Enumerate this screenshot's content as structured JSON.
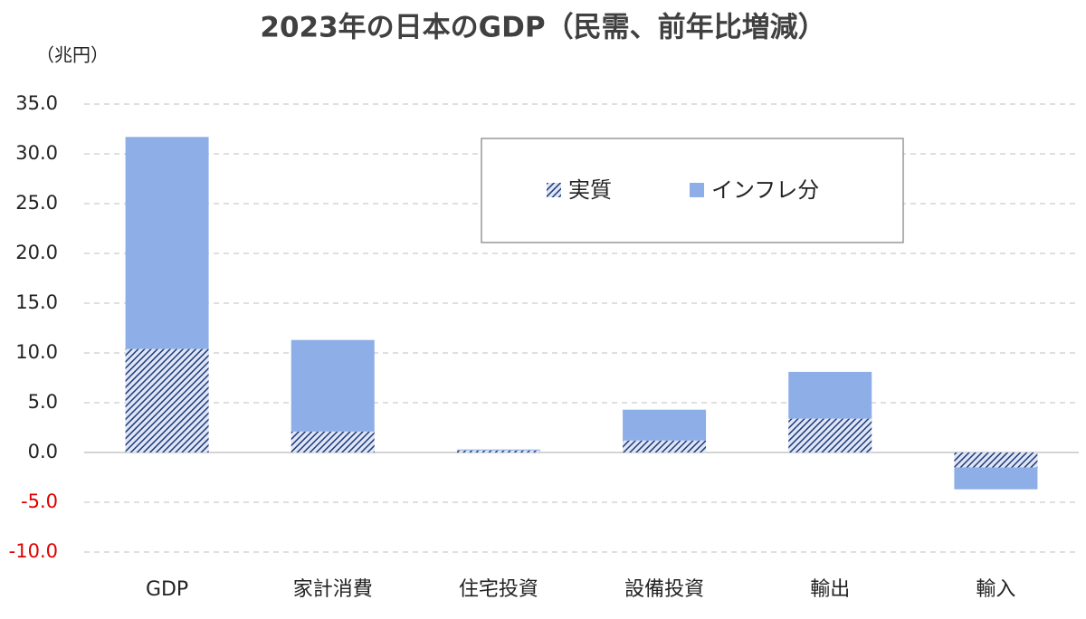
{
  "chart_data": {
    "type": "stacked_bar",
    "title": "2023年の日本のGDP（民需、前年比増減）",
    "y_label": "（兆円）",
    "categories": [
      "GDP",
      "家計消費",
      "住宅投資",
      "設備投資",
      "輸出",
      "輸入"
    ],
    "series": [
      {
        "name": "実質",
        "color": "#1f3a7a",
        "pattern": "hatch",
        "values": [
          10.4,
          2.1,
          0.2,
          1.2,
          3.4,
          -1.5
        ]
      },
      {
        "name": "インフレ分",
        "color": "#8eaee8",
        "values": [
          21.3,
          9.2,
          0.1,
          3.1,
          4.7,
          -2.2
        ]
      }
    ],
    "ylim": [
      -10,
      35
    ],
    "yticks": [
      {
        "value": -10,
        "label": "-10.0"
      },
      {
        "value": -5,
        "label": "-5.0"
      },
      {
        "value": 0,
        "label": "0.0"
      },
      {
        "value": 5,
        "label": "5.0"
      },
      {
        "value": 10,
        "label": "10.0"
      },
      {
        "value": 15,
        "label": "15.0"
      },
      {
        "value": 20,
        "label": "20.0"
      },
      {
        "value": 25,
        "label": "25.0"
      },
      {
        "value": 30,
        "label": "30.0"
      },
      {
        "value": 35,
        "label": "35.0"
      }
    ],
    "negative_tick_color": "#e00000",
    "grid": true,
    "legend": "top-right"
  }
}
